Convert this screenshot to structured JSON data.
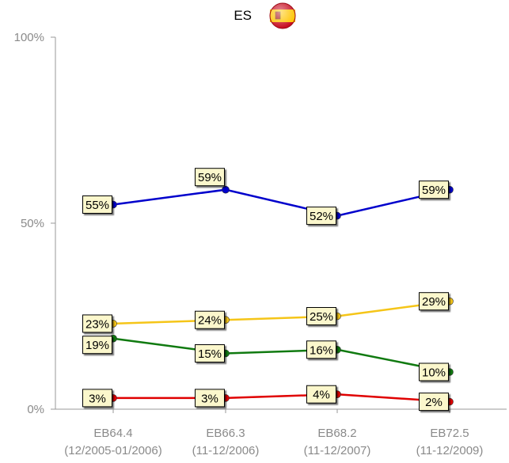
{
  "chart_data": {
    "type": "line",
    "title": "ES",
    "title_icon": "spain-flag-icon",
    "categories": [
      [
        "EB64.4",
        "(12/2005-01/2006)"
      ],
      [
        "EB66.3",
        "(11-12/2006)"
      ],
      [
        "EB68.2",
        "(11-12/2007)"
      ],
      [
        "EB72.5",
        "(11-12/2009)"
      ]
    ],
    "y_ticks": [
      "100%",
      "50%",
      "0%"
    ],
    "ylim": [
      0,
      100
    ],
    "grid": false,
    "series": [
      {
        "color": "#0000cc",
        "values": [
          55,
          59,
          52,
          59
        ],
        "labels": [
          "55%",
          "59%",
          "52%",
          "59%"
        ]
      },
      {
        "color": "#f5c518",
        "values": [
          23,
          24,
          25,
          29
        ],
        "labels": [
          "23%",
          "24%",
          "25%",
          "29%"
        ]
      },
      {
        "color": "#107a10",
        "values": [
          19,
          15,
          16,
          10
        ],
        "labels": [
          "19%",
          "15%",
          "16%",
          "10%"
        ]
      },
      {
        "color": "#e00000",
        "values": [
          3,
          3,
          4,
          2
        ],
        "labels": [
          "3%",
          "3%",
          "4%",
          "2%"
        ]
      }
    ]
  }
}
